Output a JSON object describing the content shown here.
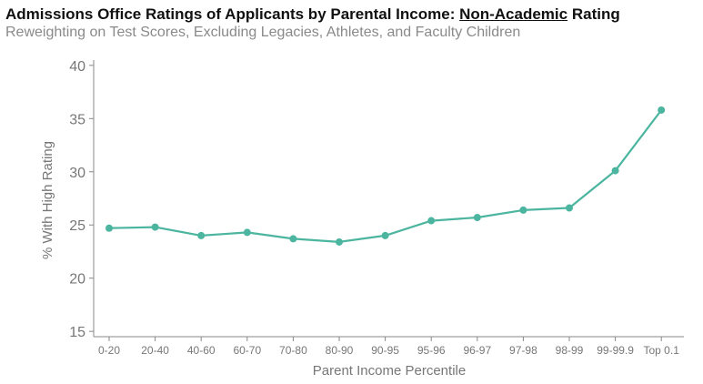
{
  "chart_data": {
    "type": "line",
    "title_prefix": "Admissions Office Ratings of Applicants by Parental Income: ",
    "title_emphasis": "Non-Academic",
    "title_suffix": " Rating",
    "subtitle": "Reweighting on Test Scores, Excluding Legacies, Athletes, and Faculty Children",
    "xlabel": "Parent Income Percentile",
    "ylabel": "% With High Rating",
    "categories": [
      "0-20",
      "20-40",
      "40-60",
      "60-70",
      "70-80",
      "80-90",
      "90-95",
      "95-96",
      "96-97",
      "97-98",
      "98-99",
      "99-99.9",
      "Top 0.1"
    ],
    "values": [
      24.7,
      24.8,
      24.0,
      24.3,
      23.7,
      23.4,
      24.0,
      25.4,
      25.7,
      26.4,
      26.6,
      30.1,
      35.8
    ],
    "ylim": [
      14.5,
      40.5
    ],
    "yticks": [
      15,
      20,
      25,
      30,
      35,
      40
    ],
    "grid": false,
    "colors": {
      "series": "#4cb5a0",
      "axis": "#888888",
      "tick_text": "#777777"
    }
  }
}
